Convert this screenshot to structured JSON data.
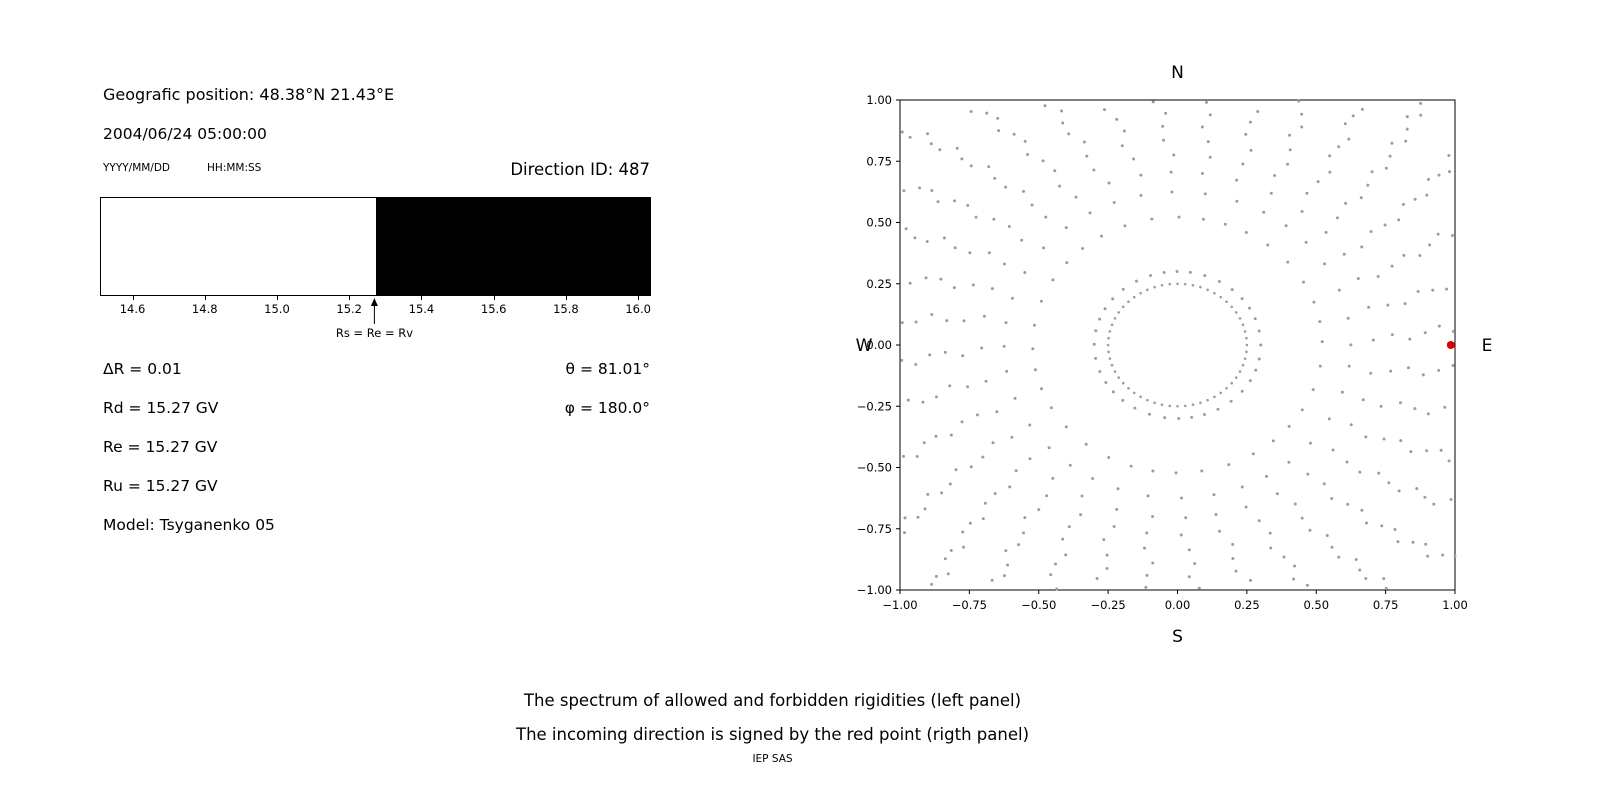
{
  "header": {
    "geo_position": "Geografic position: 48.38°N 21.43°E",
    "datetime": "2004/06/24 05:00:00",
    "date_format": "YYYY/MM/DD",
    "time_format": "HH:MM:SS",
    "direction_id": "Direction ID: 487"
  },
  "left_panel": {
    "arrow_label": "Rs = Re = Rv",
    "delta_r": "ΔR = 0.01",
    "rd": "Rd = 15.27 GV",
    "re": "Re = 15.27 GV",
    "ru": "Ru = 15.27 GV",
    "model": "Model: Tsyganenko 05",
    "theta": "θ = 81.01°",
    "phi": "φ = 180.0°"
  },
  "caption": {
    "line1": "The spectrum of allowed and forbidden rigidities (left panel)",
    "line2": "The incoming direction is signed by the red point (rigth panel)",
    "credit": "IEP SAS"
  },
  "chart_data": [
    {
      "type": "bar",
      "description": "Rigidity spectrum: allowed rigidities shown white, forbidden rigidities shown black",
      "x_range": [
        14.51,
        16.03
      ],
      "x_tick_values": [
        14.6,
        14.8,
        15.0,
        15.2,
        15.4,
        15.6,
        15.8,
        16.0
      ],
      "x_tick_labels": [
        "14.6",
        "14.8",
        "15.0",
        "15.2",
        "15.4",
        "15.6",
        "15.8",
        "16.0"
      ],
      "boundary_rigidity": 15.27,
      "regions": [
        {
          "name": "allowed",
          "from": 14.51,
          "to": 15.27,
          "color": "#ffffff"
        },
        {
          "name": "forbidden",
          "from": 15.27,
          "to": 16.03,
          "color": "#000000"
        }
      ],
      "annotation": "Rs = Re = Rv"
    },
    {
      "type": "scatter",
      "description": "Incoming direction map: gray dotted rays radiate outward, red point marks incoming direction at E",
      "xlim": [
        -1.0,
        1.0
      ],
      "ylim": [
        -1.0,
        1.0
      ],
      "x_tick_values": [
        -1.0,
        -0.75,
        -0.5,
        -0.25,
        0.0,
        0.25,
        0.5,
        0.75,
        1.0
      ],
      "x_tick_labels": [
        "−1.00",
        "−0.75",
        "−0.50",
        "−0.25",
        "0.00",
        "0.25",
        "0.50",
        "0.75",
        "1.00"
      ],
      "y_tick_values": [
        -1.0,
        -0.75,
        -0.5,
        -0.25,
        0.0,
        0.25,
        0.5,
        0.75,
        1.0
      ],
      "y_tick_labels": [
        "−1.00",
        "−0.75",
        "−0.50",
        "−0.25",
        "0.00",
        "0.25",
        "0.50",
        "0.75",
        "1.00"
      ],
      "compass": {
        "north": "N",
        "south": "S",
        "west": "W",
        "east": "E"
      },
      "dot_color": "#9c9c9c",
      "red_point": {
        "x": 0.985,
        "y": 0.0,
        "color": "#dd0000",
        "meaning": "incoming direction"
      },
      "pattern": {
        "rays": {
          "count": 36,
          "start_angle_deg": 0,
          "step_deg": 10,
          "r_start": 0.3,
          "r_end": 1.42,
          "points_per_ray": 20,
          "density_power": 0.55,
          "twist_deg": 10
        },
        "inner_ring": {
          "radius": 0.25,
          "points": 56
        }
      },
      "grid": false,
      "legend": false
    }
  ]
}
